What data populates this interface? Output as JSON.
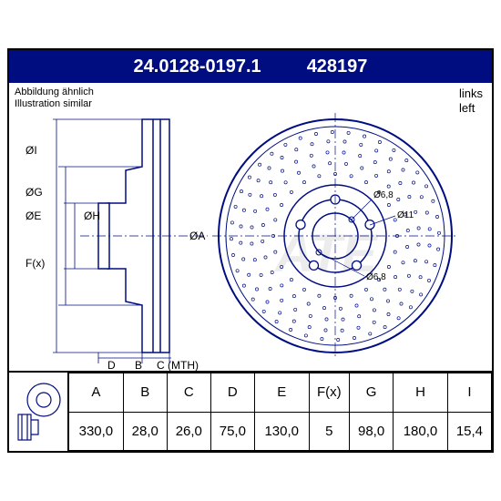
{
  "header": {
    "part_number": "24.0128-0197.1",
    "alt_number": "428197"
  },
  "subtext": {
    "similar_de": "Abbildung ähnlich",
    "similar_en": "Illustration similar",
    "side_de": "links",
    "side_en": "left"
  },
  "diagram": {
    "labels_side": [
      "ØI",
      "ØG",
      "ØE",
      "ØH",
      "ØA",
      "F(x)",
      "B",
      "C (MTH)",
      "D"
    ],
    "labels_front": [
      "Ø6,8",
      "Ø11",
      "Ø6,8"
    ],
    "colors": {
      "header_bg": "#000d80",
      "header_text": "#ffffff",
      "line": "#000d80",
      "watermark": "#d8d8d8"
    },
    "disc": {
      "bolt_holes": 5,
      "drilled": true,
      "vented": true
    }
  },
  "table": {
    "columns": [
      "A",
      "B",
      "C",
      "D",
      "E",
      "F(x)",
      "G",
      "H",
      "I"
    ],
    "values": [
      "330,0",
      "28,0",
      "26,0",
      "75,0",
      "130,0",
      "5",
      "98,0",
      "180,0",
      "15,4"
    ]
  }
}
